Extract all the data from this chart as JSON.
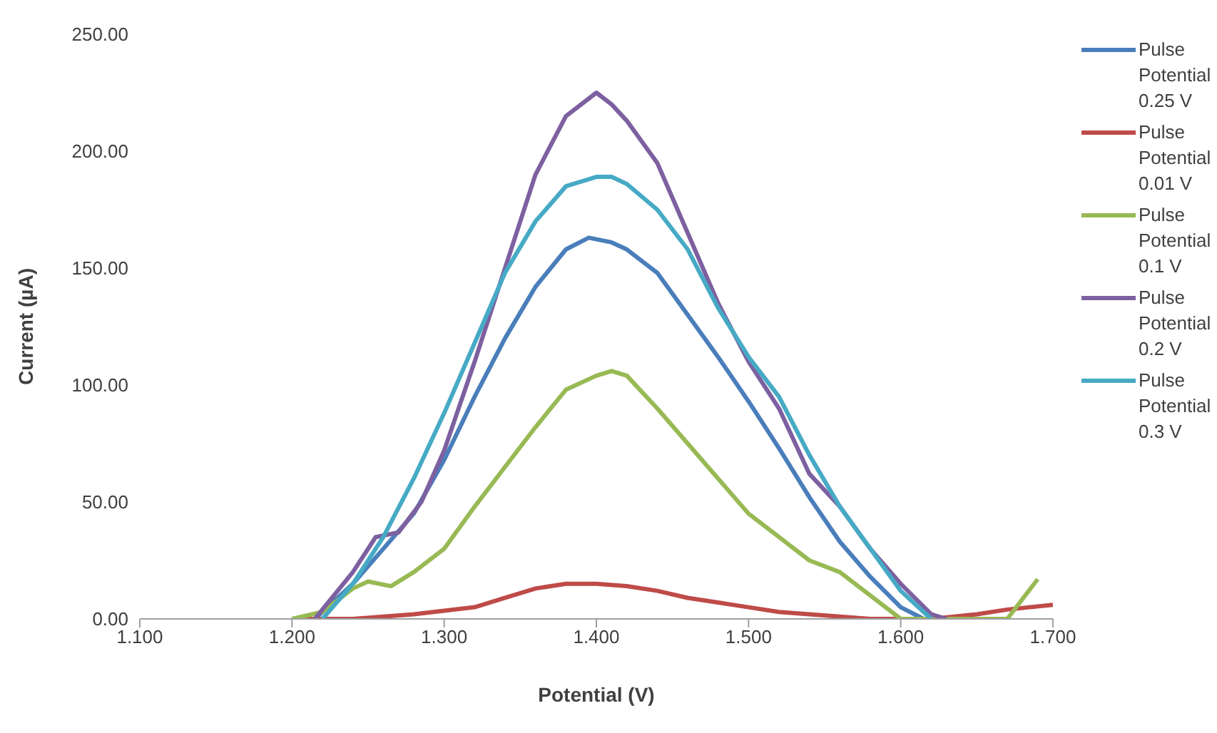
{
  "chart_data": {
    "type": "line",
    "xlabel": "Potential (V)",
    "ylabel": "Current (µA)",
    "xlim": [
      1.1,
      1.7
    ],
    "xticks": [
      {
        "value": 1.1,
        "label": "1.100"
      },
      {
        "value": 1.2,
        "label": "1.200"
      },
      {
        "value": 1.3,
        "label": "1.300"
      },
      {
        "value": 1.4,
        "label": "1.400"
      },
      {
        "value": 1.5,
        "label": "1.500"
      },
      {
        "value": 1.6,
        "label": "1.600"
      },
      {
        "value": 1.7,
        "label": "1.700"
      }
    ],
    "ylim": [
      0,
      250
    ],
    "yticks": [
      {
        "value": 0,
        "label": "0.00"
      },
      {
        "value": 50,
        "label": "50.00"
      },
      {
        "value": 100,
        "label": "100.00"
      },
      {
        "value": 150,
        "label": "150.00"
      },
      {
        "value": 200,
        "label": "200.00"
      },
      {
        "value": 250,
        "label": "250.00"
      }
    ],
    "grid": false,
    "legend": "right",
    "marker": "none",
    "line_style": "solid",
    "series": [
      {
        "name": "Pulse Potential 0.25 V",
        "color": "#4a7ebb",
        "x": [
          1.215,
          1.24,
          1.26,
          1.28,
          1.3,
          1.32,
          1.34,
          1.36,
          1.38,
          1.395,
          1.41,
          1.42,
          1.44,
          1.46,
          1.48,
          1.5,
          1.52,
          1.54,
          1.56,
          1.58,
          1.6,
          1.615
        ],
        "values": [
          0,
          15,
          30,
          45,
          68,
          95,
          120,
          142,
          158,
          163,
          161,
          158,
          148,
          130,
          112,
          93,
          73,
          52,
          33,
          18,
          5,
          0
        ]
      },
      {
        "name": "Pulse Potential 0.01 V",
        "color": "#be4b48",
        "x": [
          1.2,
          1.24,
          1.28,
          1.32,
          1.34,
          1.36,
          1.38,
          1.4,
          1.42,
          1.44,
          1.46,
          1.48,
          1.5,
          1.52,
          1.54,
          1.56,
          1.58,
          1.62,
          1.65,
          1.67,
          1.7
        ],
        "values": [
          0,
          0,
          2,
          5,
          9,
          13,
          15,
          15,
          14,
          12,
          9,
          7,
          5,
          3,
          2,
          1,
          0,
          0,
          2,
          4,
          6
        ]
      },
      {
        "name": "Pulse Potential 0.1 V",
        "color": "#98b954",
        "x": [
          1.2,
          1.22,
          1.24,
          1.25,
          1.265,
          1.28,
          1.3,
          1.32,
          1.34,
          1.36,
          1.38,
          1.4,
          1.41,
          1.42,
          1.44,
          1.46,
          1.48,
          1.5,
          1.52,
          1.54,
          1.56,
          1.58,
          1.6,
          1.61,
          1.67,
          1.69
        ],
        "values": [
          0,
          3,
          13,
          16,
          14,
          20,
          30,
          48,
          65,
          82,
          98,
          104,
          106,
          104,
          90,
          75,
          60,
          45,
          35,
          25,
          20,
          10,
          0,
          0,
          0,
          17
        ]
      },
      {
        "name": "Pulse Potential 0.2 V",
        "color": "#7d60a0",
        "x": [
          1.215,
          1.24,
          1.255,
          1.27,
          1.285,
          1.3,
          1.32,
          1.34,
          1.36,
          1.38,
          1.4,
          1.41,
          1.42,
          1.44,
          1.46,
          1.48,
          1.5,
          1.52,
          1.54,
          1.56,
          1.58,
          1.6,
          1.62,
          1.63
        ],
        "values": [
          0,
          20,
          35,
          37,
          50,
          72,
          110,
          150,
          190,
          215,
          225,
          220,
          213,
          195,
          165,
          135,
          110,
          90,
          62,
          48,
          30,
          15,
          2,
          0
        ]
      },
      {
        "name": "Pulse Potential 0.3 V",
        "color": "#46aac5",
        "x": [
          1.22,
          1.24,
          1.26,
          1.28,
          1.3,
          1.32,
          1.34,
          1.36,
          1.38,
          1.4,
          1.41,
          1.42,
          1.44,
          1.46,
          1.48,
          1.5,
          1.52,
          1.54,
          1.56,
          1.58,
          1.6,
          1.62
        ],
        "values": [
          0,
          15,
          35,
          60,
          88,
          118,
          148,
          170,
          185,
          189,
          189,
          186,
          175,
          158,
          133,
          112,
          95,
          70,
          48,
          30,
          12,
          0
        ]
      }
    ]
  }
}
